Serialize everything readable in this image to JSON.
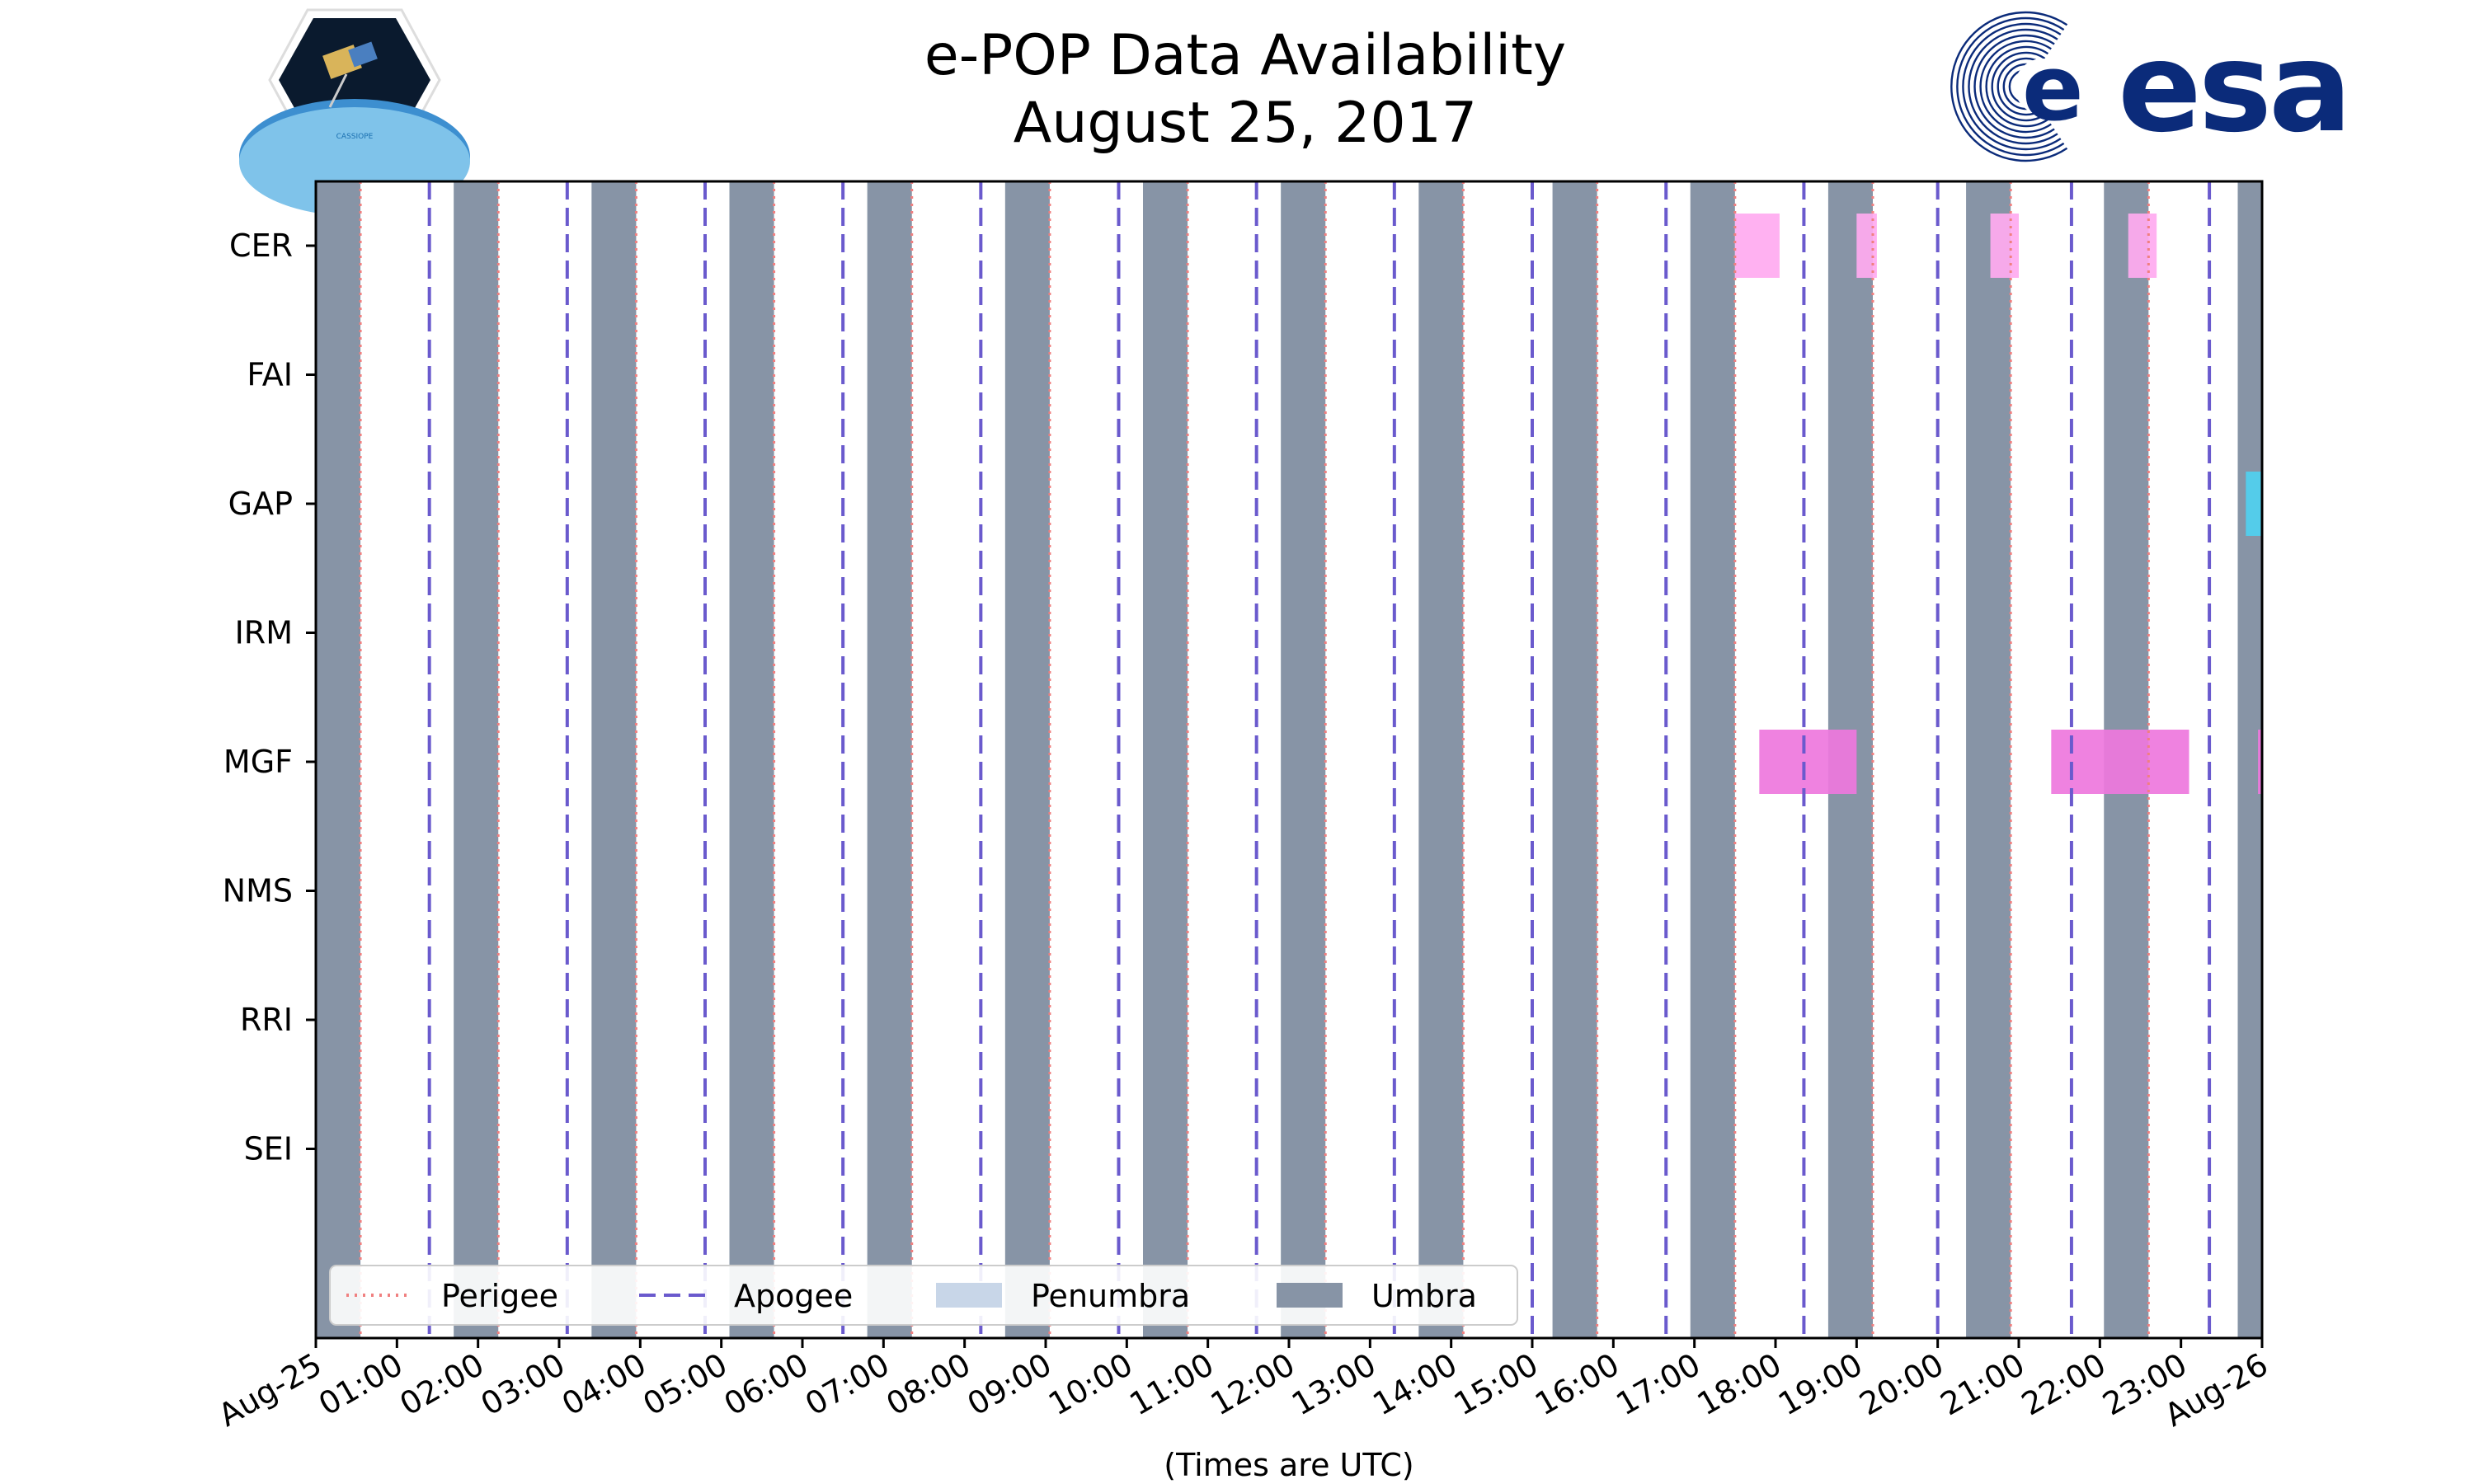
{
  "chart_data": {
    "type": "timeline",
    "title": [
      "e-POP Data Availability",
      "August 25, 2017"
    ],
    "xlabel": "(Times are UTC)",
    "xlim_hours": [
      0,
      24
    ],
    "x_tick_hours": [
      0,
      1,
      2,
      3,
      4,
      5,
      6,
      7,
      8,
      9,
      10,
      11,
      12,
      13,
      14,
      15,
      16,
      17,
      18,
      19,
      20,
      21,
      22,
      23,
      24
    ],
    "x_tick_labels": [
      "Aug-25",
      "01:00",
      "02:00",
      "03:00",
      "04:00",
      "05:00",
      "06:00",
      "07:00",
      "08:00",
      "09:00",
      "10:00",
      "11:00",
      "12:00",
      "13:00",
      "14:00",
      "15:00",
      "16:00",
      "17:00",
      "18:00",
      "19:00",
      "20:00",
      "21:00",
      "22:00",
      "23:00",
      "Aug-26"
    ],
    "instruments": [
      "CER",
      "FAI",
      "GAP",
      "IRM",
      "MGF",
      "NMS",
      "RRI",
      "SEI"
    ],
    "umbra_intervals_hours": [
      [
        0,
        0.55
      ],
      [
        1.7,
        2.25
      ],
      [
        3.4,
        3.95
      ],
      [
        5.1,
        5.65
      ],
      [
        6.8,
        7.35
      ],
      [
        8.5,
        9.05
      ],
      [
        10.2,
        10.75
      ],
      [
        11.9,
        12.45
      ],
      [
        13.6,
        14.15
      ],
      [
        15.25,
        15.8
      ],
      [
        16.95,
        17.5
      ],
      [
        18.65,
        19.2
      ],
      [
        20.35,
        20.9
      ],
      [
        22.05,
        22.6
      ],
      [
        23.7,
        24
      ]
    ],
    "perigee_hours": [
      0.55,
      2.25,
      3.95,
      5.65,
      7.35,
      9.05,
      10.75,
      12.45,
      14.15,
      15.8,
      17.5,
      19.2,
      20.9,
      22.6
    ],
    "apogee_hours": [
      1.4,
      3.1,
      4.8,
      6.5,
      8.2,
      9.9,
      11.6,
      13.3,
      15.0,
      16.65,
      18.35,
      20.0,
      21.65,
      23.35
    ],
    "penumbra_intervals_hours": [],
    "data_intervals": [
      {
        "instrument": "CER",
        "color": "#ffaaf0",
        "intervals": [
          [
            17.5,
            18.05
          ],
          [
            19.0,
            19.25
          ],
          [
            20.65,
            21.0
          ],
          [
            22.35,
            22.7
          ]
        ]
      },
      {
        "instrument": "GAP",
        "color": "#4fd0f0",
        "intervals": [
          [
            23.8,
            24.0
          ]
        ]
      },
      {
        "instrument": "MGF",
        "color": "#ee77dd",
        "intervals": [
          [
            17.8,
            19.0
          ],
          [
            21.4,
            23.1
          ],
          [
            23.95,
            24.0
          ]
        ]
      }
    ],
    "legend": {
      "placement": "bottom-left",
      "entries": [
        {
          "label": "Perigee",
          "style": "dotted",
          "color": "#f08080"
        },
        {
          "label": "Apogee",
          "style": "dashed",
          "color": "#6a5acd"
        },
        {
          "label": "Penumbra",
          "style": "patch",
          "color": "#c8d6e8"
        },
        {
          "label": "Umbra",
          "style": "patch",
          "color": "#8794a6"
        }
      ]
    }
  },
  "logos": {
    "left_label": "CASSIOPE",
    "right_text": "esa"
  },
  "colors": {
    "umbra": "#8794a6",
    "perigee": "#f08080",
    "apogee": "#6a5acd",
    "esa_blue": "#0b2b7a"
  }
}
